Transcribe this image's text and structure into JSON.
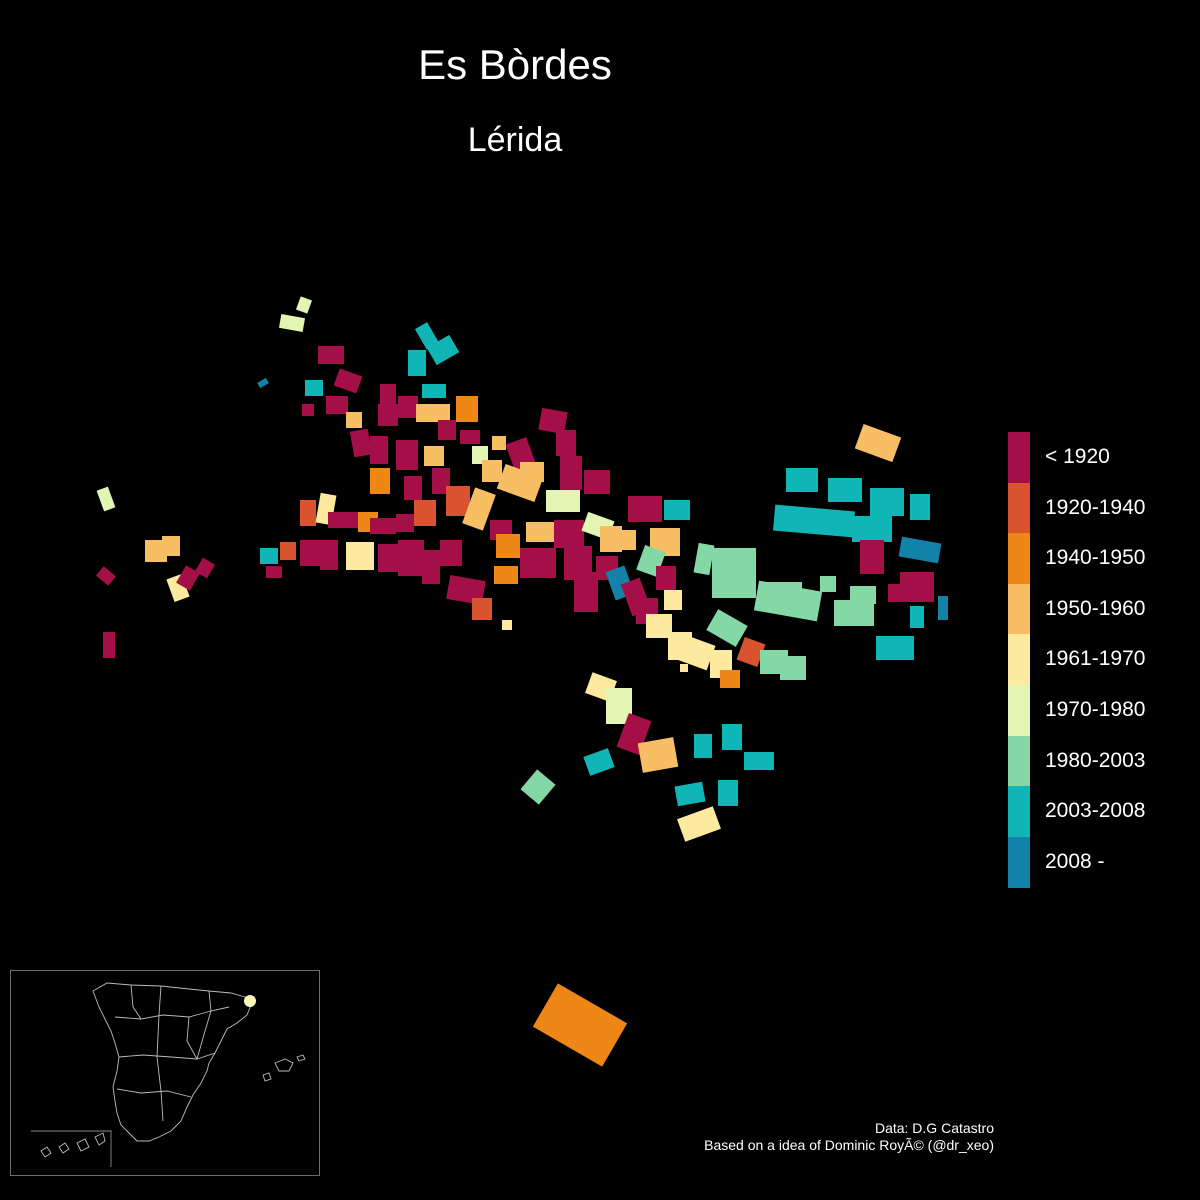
{
  "map": {
    "title": "Es Bòrdes",
    "subtitle": "Lérida"
  },
  "legend": {
    "items": [
      {
        "label": "< 1920",
        "color": "#A50F47"
      },
      {
        "label": "1920-1940",
        "color": "#D8532E"
      },
      {
        "label": "1940-1950",
        "color": "#EE8716"
      },
      {
        "label": "1950-1960",
        "color": "#F8BE63"
      },
      {
        "label": "1961-1970",
        "color": "#FDEA9F"
      },
      {
        "label": "1970-1980",
        "color": "#E3F5B2"
      },
      {
        "label": "1980-2003",
        "color": "#83D8A5"
      },
      {
        "label": "2003-2008",
        "color": "#10B5B6"
      },
      {
        "label": "2008 -",
        "color": "#1282A8"
      }
    ]
  },
  "credits": {
    "line1": "Data: D.G Catastro",
    "line2": "Based on a idea of Dominic RoyÃ© (@dr_xeo)"
  },
  "inset": {
    "location_marker_color": "#FEF7BA"
  }
}
